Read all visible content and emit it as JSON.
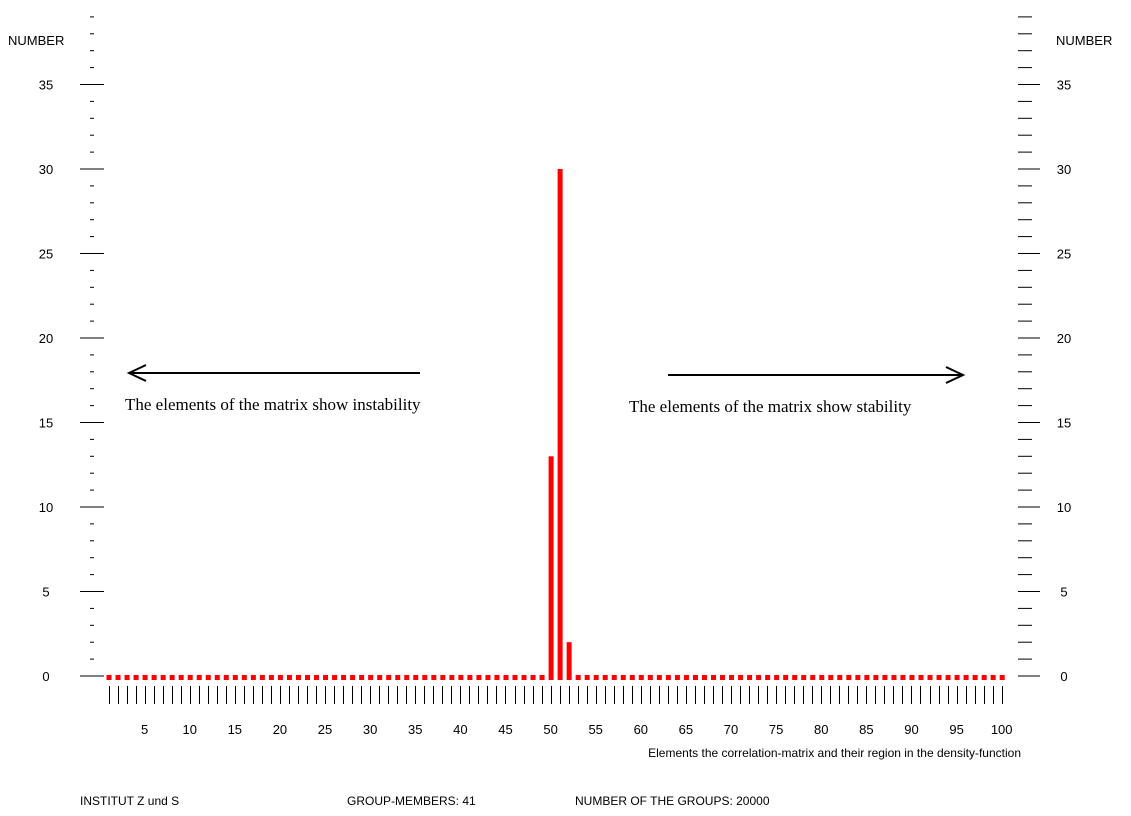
{
  "chart_data": {
    "type": "bar",
    "ylabel_left": "NUMBER",
    "ylabel_right": "NUMBER",
    "xlabel": "Elements the correlation-matrix and their region in the density-function",
    "x_range": [
      1,
      100
    ],
    "xticks": [
      5,
      10,
      15,
      20,
      25,
      30,
      35,
      40,
      45,
      50,
      55,
      60,
      65,
      70,
      75,
      80,
      85,
      90,
      95,
      100
    ],
    "ylim": [
      0,
      35
    ],
    "yticks": [
      0,
      5,
      10,
      15,
      20,
      25,
      30,
      35
    ],
    "points": [
      {
        "x": 50,
        "y": 13
      },
      {
        "x": 51,
        "y": 30
      },
      {
        "x": 52,
        "y": 2
      }
    ],
    "bar_color": "#ff0000",
    "zero_marker_color": "#ff0000",
    "annotations": {
      "left_arrow_text": "The elements of the matrix show instability",
      "right_arrow_text": "The elements of the matrix show stability"
    }
  },
  "footer": {
    "institute": "INSTITUT  Z und S",
    "group_members": "GROUP-MEMBERS: 41",
    "number_of_groups": "NUMBER OF THE GROUPS: 20000"
  }
}
